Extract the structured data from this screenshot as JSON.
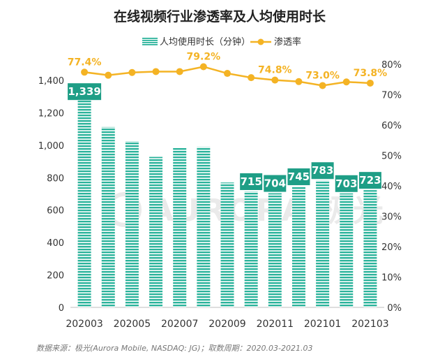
{
  "title": "在线视频行业渗透率及人均使用时长",
  "legend": {
    "bar_label": "人均使用时长（分钟）",
    "line_label": "渗透率"
  },
  "source": "数据来源：极光(Aurora Mobile, NASDAQ: JG)；取数周期：2020.03-2021.03",
  "watermark": "AURORA 极光",
  "colors": {
    "bar": "#2bb39b",
    "line": "#f4b324",
    "label_box": "#1e9e86"
  },
  "chart_data": {
    "type": "bar",
    "categories": [
      "202003",
      "202004",
      "202005",
      "202006",
      "202007",
      "202008",
      "202009",
      "202010",
      "202011",
      "202012",
      "202101",
      "202102",
      "202103"
    ],
    "x_tick_labels": [
      "202003",
      "",
      "202005",
      "",
      "202007",
      "",
      "202009",
      "",
      "202011",
      "",
      "202101",
      "",
      "202103"
    ],
    "series": [
      {
        "name": "人均使用时长（分钟）",
        "type": "bar",
        "axis": "left",
        "values": [
          1339,
          1112,
          1025,
          928,
          985,
          990,
          770,
          715,
          704,
          745,
          783,
          703,
          723
        ],
        "labels": [
          "1,339",
          "",
          "",
          "",
          "",
          "",
          "",
          "715",
          "704",
          "745",
          "783",
          "703",
          "723"
        ]
      },
      {
        "name": "渗透率",
        "type": "line",
        "axis": "right",
        "values": [
          77.4,
          76.4,
          77.3,
          77.6,
          77.6,
          79.2,
          77.0,
          75.6,
          74.8,
          74.3,
          73.0,
          74.2,
          73.8
        ],
        "labels": [
          "77.4%",
          "",
          "",
          "",
          "",
          "79.2%",
          "",
          "",
          "74.8%",
          "",
          "73.0%",
          "",
          "73.8%"
        ]
      }
    ],
    "ylim": [
      0,
      1400
    ],
    "y_ticks": [
      0,
      200,
      400,
      600,
      800,
      1000,
      1200,
      1400
    ],
    "y_tick_labels": [
      "0",
      "200",
      "400",
      "600",
      "800",
      "1,000",
      "1,200",
      "1,400"
    ],
    "y2lim": [
      0,
      80
    ],
    "y2_ticks": [
      0,
      10,
      20,
      30,
      40,
      50,
      60,
      70,
      80
    ],
    "y2_tick_labels": [
      "0%",
      "10%",
      "20%",
      "30%",
      "40%",
      "50%",
      "60%",
      "70%",
      "80%"
    ]
  }
}
